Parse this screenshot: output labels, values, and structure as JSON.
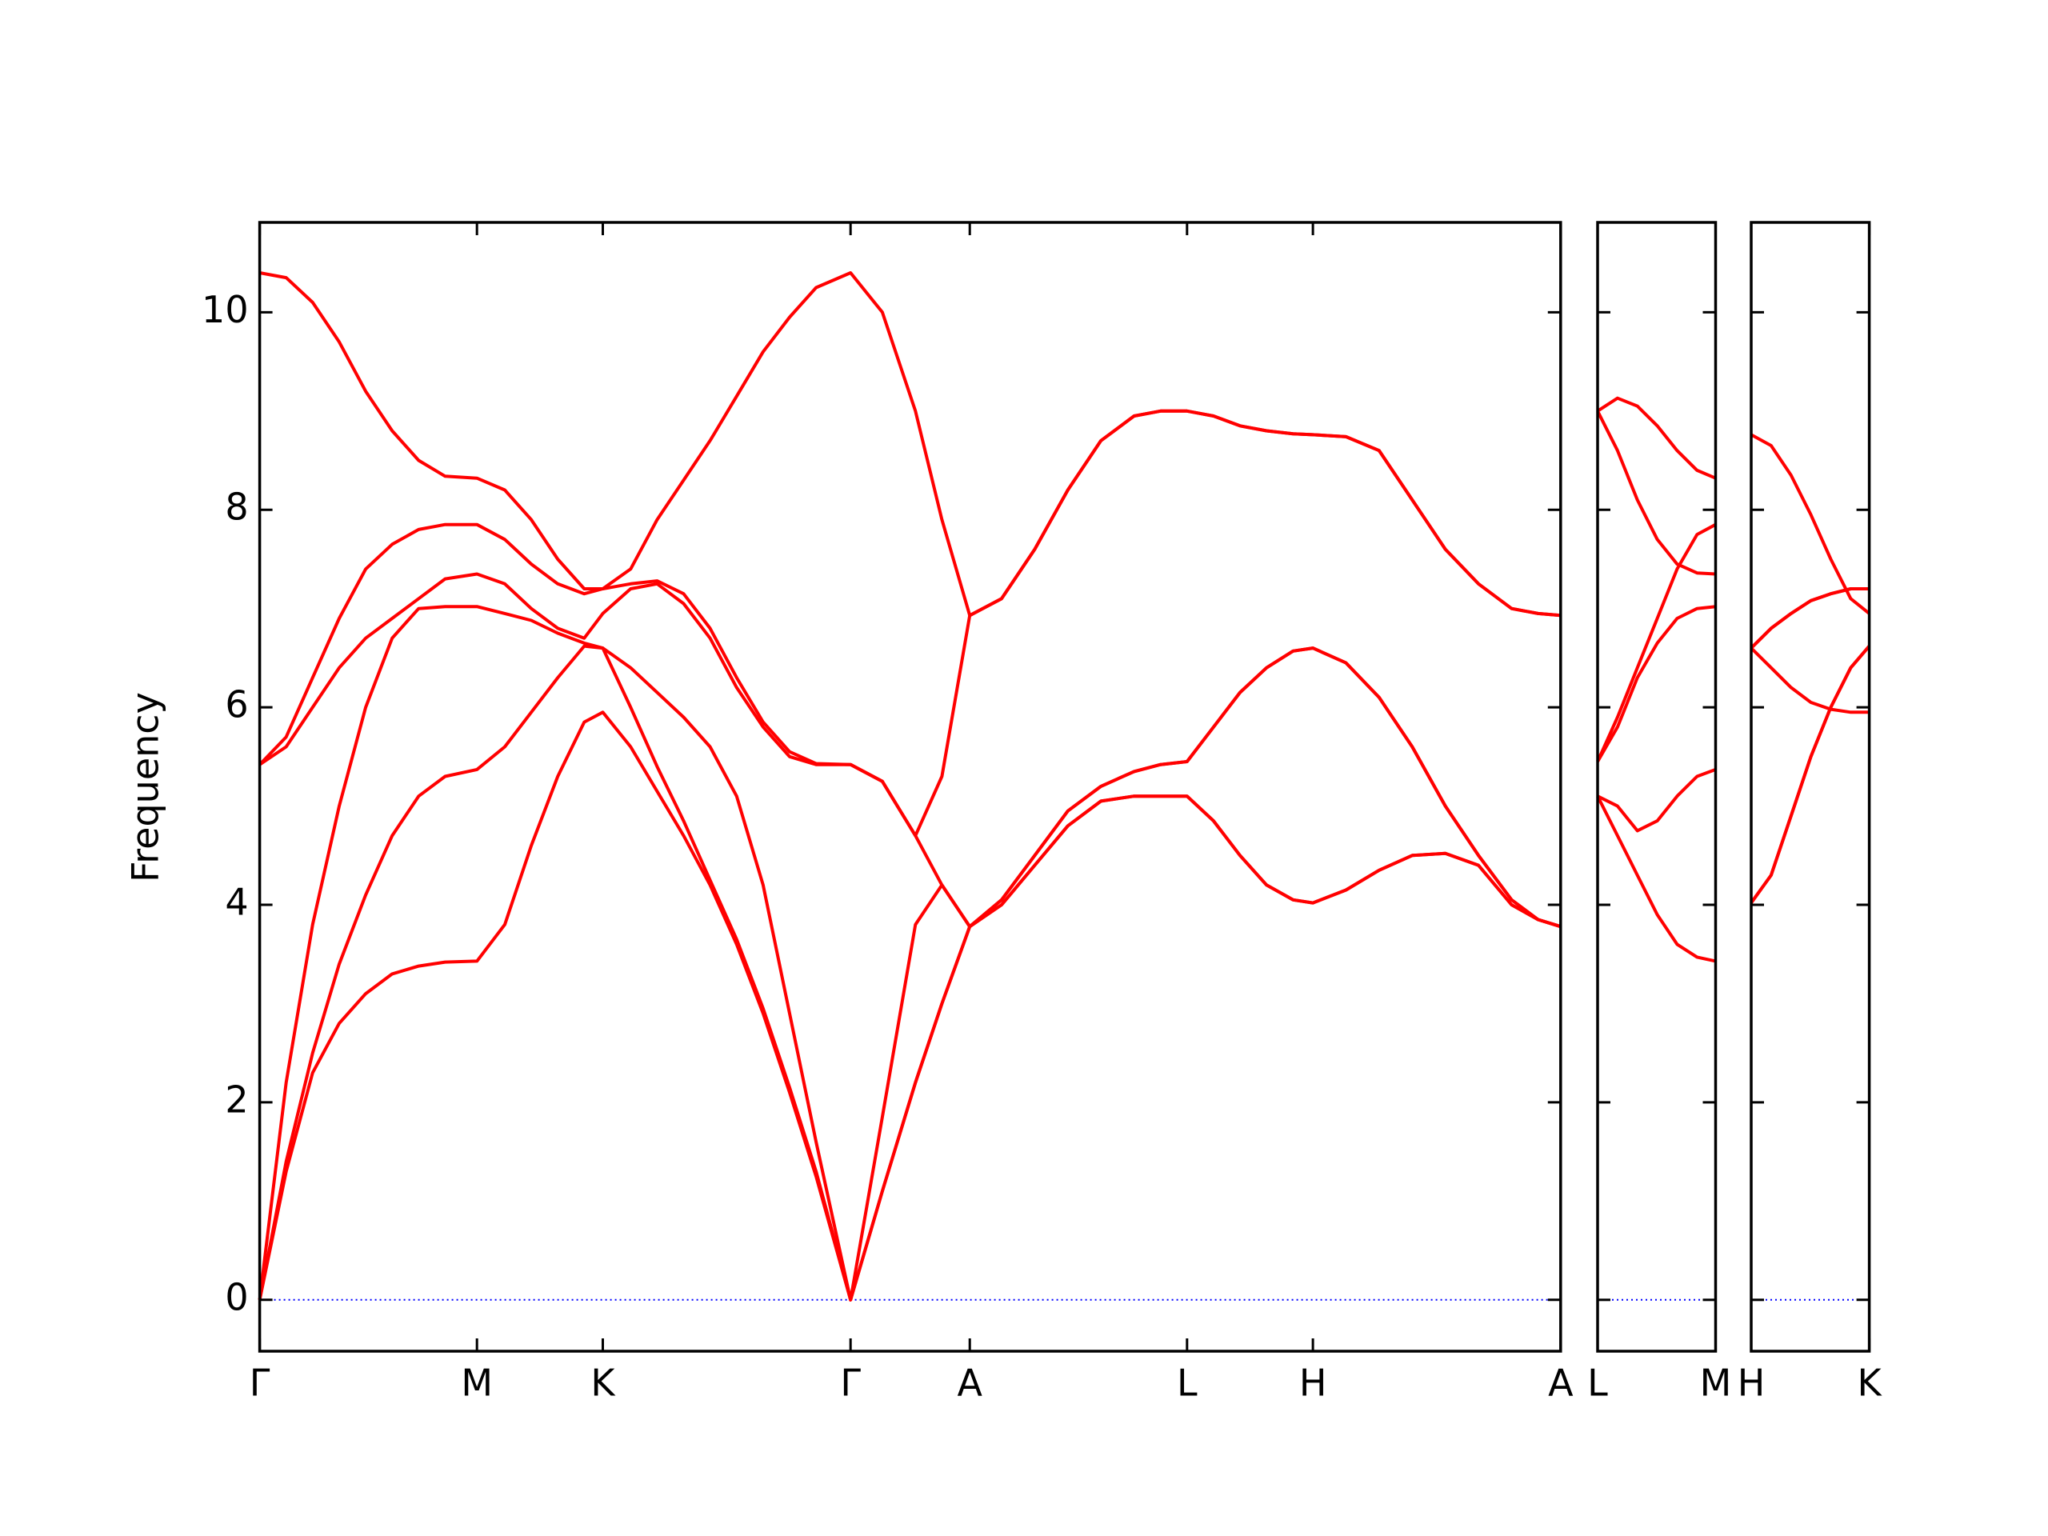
{
  "chart_data": [
    {
      "type": "line",
      "y_label": "Frequency",
      "color": "#ff0000",
      "zero_line_color": "#0000ff",
      "xlim": [
        0,
        9.82
      ],
      "ylim": [
        -0.52,
        10.91
      ],
      "yticks": [
        0,
        2,
        4,
        6,
        8,
        10
      ],
      "ytick_labels": true,
      "xticks": [
        {
          "value": 0,
          "label": "Γ"
        },
        {
          "value": 1.64,
          "label": "M"
        },
        {
          "value": 2.59,
          "label": "K"
        },
        {
          "value": 4.46,
          "label": "Γ"
        },
        {
          "value": 5.36,
          "label": "A"
        },
        {
          "value": 7.0,
          "label": "L"
        },
        {
          "value": 7.95,
          "label": "H"
        },
        {
          "value": 9.82,
          "label": "A"
        }
      ],
      "x": [
        0,
        0.2,
        0.4,
        0.6,
        0.8,
        1.0,
        1.2,
        1.4,
        1.64,
        1.85,
        2.05,
        2.25,
        2.45,
        2.59,
        2.8,
        3.0,
        3.2,
        3.4,
        3.6,
        3.8,
        4.0,
        4.2,
        4.46,
        4.7,
        4.95,
        5.15,
        5.36,
        5.6,
        5.85,
        6.1,
        6.35,
        6.6,
        6.8,
        7.0,
        7.2,
        7.4,
        7.6,
        7.8,
        7.95,
        8.2,
        8.45,
        8.7,
        8.95,
        9.2,
        9.45,
        9.65,
        9.82
      ],
      "series": [
        {
          "values": [
            0,
            1.3,
            2.3,
            2.8,
            3.1,
            3.3,
            3.38,
            3.42,
            3.43,
            3.8,
            4.6,
            5.3,
            5.85,
            5.95,
            5.6,
            5.15,
            4.7,
            4.2,
            3.6,
            2.9,
            2.1,
            1.25,
            0,
            1.1,
            2.2,
            3.0,
            3.78,
            4.0,
            4.4,
            4.8,
            5.05,
            5.1,
            5.1,
            5.1,
            4.85,
            4.5,
            4.2,
            4.05,
            4.02,
            4.15,
            4.35,
            4.5,
            4.52,
            4.4,
            4.0,
            3.85,
            3.78
          ]
        },
        {
          "values": [
            0,
            1.4,
            2.5,
            3.4,
            4.1,
            4.7,
            5.1,
            5.3,
            5.37,
            5.6,
            5.95,
            6.3,
            6.62,
            6.6,
            6.0,
            5.4,
            4.85,
            4.25,
            3.65,
            2.95,
            2.15,
            1.3,
            0,
            1.1,
            2.2,
            3.0,
            3.78,
            4.0,
            4.4,
            4.8,
            5.05,
            5.1,
            5.1,
            5.1,
            4.85,
            4.5,
            4.2,
            4.05,
            4.02,
            4.15,
            4.35,
            4.5,
            4.52,
            4.4,
            4.0,
            3.85,
            3.78
          ]
        },
        {
          "values": [
            0,
            2.2,
            3.8,
            5.0,
            6.0,
            6.7,
            7.0,
            7.02,
            7.02,
            6.95,
            6.88,
            6.75,
            6.65,
            6.6,
            6.4,
            6.15,
            5.9,
            5.6,
            5.1,
            4.2,
            2.9,
            1.6,
            0,
            1.85,
            3.8,
            4.2,
            3.78,
            4.05,
            4.5,
            4.95,
            5.2,
            5.35,
            5.42,
            5.45,
            5.8,
            6.15,
            6.4,
            6.57,
            6.6,
            6.45,
            6.1,
            5.6,
            5.0,
            4.5,
            4.05,
            3.85,
            3.78
          ]
        },
        {
          "values": [
            5.42,
            5.6,
            6.0,
            6.4,
            6.7,
            6.9,
            7.1,
            7.3,
            7.35,
            7.25,
            7.0,
            6.8,
            6.7,
            6.95,
            7.2,
            7.25,
            7.05,
            6.7,
            6.2,
            5.8,
            5.5,
            5.42,
            5.42,
            5.25,
            4.7,
            4.2,
            3.78,
            4.05,
            4.5,
            4.95,
            5.2,
            5.35,
            5.42,
            5.45,
            5.8,
            6.15,
            6.4,
            6.57,
            6.6,
            6.45,
            6.1,
            5.6,
            5.0,
            4.5,
            4.05,
            3.85,
            3.78
          ]
        },
        {
          "values": [
            5.42,
            5.7,
            6.3,
            6.9,
            7.4,
            7.65,
            7.8,
            7.85,
            7.85,
            7.7,
            7.45,
            7.25,
            7.15,
            7.2,
            7.25,
            7.28,
            7.15,
            6.8,
            6.3,
            5.85,
            5.55,
            5.43,
            5.42,
            5.25,
            4.7,
            5.3,
            6.93,
            7.1,
            7.6,
            8.2,
            8.7,
            8.95,
            9.0,
            9.0,
            8.95,
            8.85,
            8.8,
            8.77,
            8.76,
            8.74,
            8.6,
            8.1,
            7.6,
            7.25,
            7.0,
            6.95,
            6.93
          ]
        },
        {
          "values": [
            10.4,
            10.35,
            10.1,
            9.7,
            9.2,
            8.8,
            8.5,
            8.34,
            8.32,
            8.2,
            7.9,
            7.5,
            7.2,
            7.2,
            7.4,
            7.9,
            8.3,
            8.7,
            9.15,
            9.6,
            9.95,
            10.25,
            10.4,
            10.0,
            9.0,
            7.9,
            6.93,
            7.1,
            7.6,
            8.2,
            8.7,
            8.95,
            9.0,
            9.0,
            8.95,
            8.85,
            8.8,
            8.77,
            8.76,
            8.74,
            8.6,
            8.1,
            7.6,
            7.25,
            7.0,
            6.95,
            6.93
          ]
        }
      ]
    },
    {
      "type": "line",
      "color": "#ff0000",
      "zero_line_color": "#0000ff",
      "xlim": [
        0,
        0.89
      ],
      "ylim": [
        -0.52,
        10.91
      ],
      "yticks": [
        0,
        2,
        4,
        6,
        8,
        10
      ],
      "ytick_labels": false,
      "xticks": [
        {
          "value": 0,
          "label": "L"
        },
        {
          "value": 0.89,
          "label": "M"
        }
      ],
      "x": [
        0,
        0.15,
        0.3,
        0.45,
        0.6,
        0.75,
        0.89
      ],
      "series": [
        {
          "values": [
            5.1,
            4.7,
            4.3,
            3.9,
            3.6,
            3.47,
            3.43
          ]
        },
        {
          "values": [
            5.1,
            5.0,
            4.75,
            4.85,
            5.1,
            5.3,
            5.37
          ]
        },
        {
          "values": [
            5.45,
            5.8,
            6.3,
            6.65,
            6.9,
            7.0,
            7.02
          ]
        },
        {
          "values": [
            5.45,
            5.9,
            6.4,
            6.9,
            7.4,
            7.75,
            7.85
          ]
        },
        {
          "values": [
            9.0,
            8.6,
            8.1,
            7.7,
            7.45,
            7.36,
            7.35
          ]
        },
        {
          "values": [
            9.0,
            9.13,
            9.05,
            8.85,
            8.6,
            8.4,
            8.32
          ]
        }
      ]
    },
    {
      "type": "line",
      "color": "#ff0000",
      "zero_line_color": "#0000ff",
      "xlim": [
        0,
        0.89
      ],
      "ylim": [
        -0.52,
        10.91
      ],
      "yticks": [
        0,
        2,
        4,
        6,
        8,
        10
      ],
      "ytick_labels": false,
      "xticks": [
        {
          "value": 0,
          "label": "H"
        },
        {
          "value": 0.89,
          "label": "K"
        }
      ],
      "x": [
        0,
        0.15,
        0.3,
        0.45,
        0.6,
        0.75,
        0.89
      ],
      "series": [
        {
          "values": [
            4.02,
            4.3,
            4.9,
            5.5,
            6.0,
            6.4,
            6.62
          ]
        },
        {
          "values": [
            4.02,
            4.3,
            4.9,
            5.5,
            6.0,
            6.4,
            6.62
          ]
        },
        {
          "values": [
            6.6,
            6.4,
            6.2,
            6.05,
            5.98,
            5.95,
            5.95
          ]
        },
        {
          "values": [
            6.6,
            6.8,
            6.95,
            7.08,
            7.15,
            7.2,
            7.2
          ]
        },
        {
          "values": [
            6.6,
            6.8,
            6.95,
            7.08,
            7.15,
            7.2,
            7.2
          ]
        },
        {
          "values": [
            8.76,
            8.65,
            8.35,
            7.95,
            7.5,
            7.1,
            6.95
          ]
        }
      ]
    }
  ]
}
